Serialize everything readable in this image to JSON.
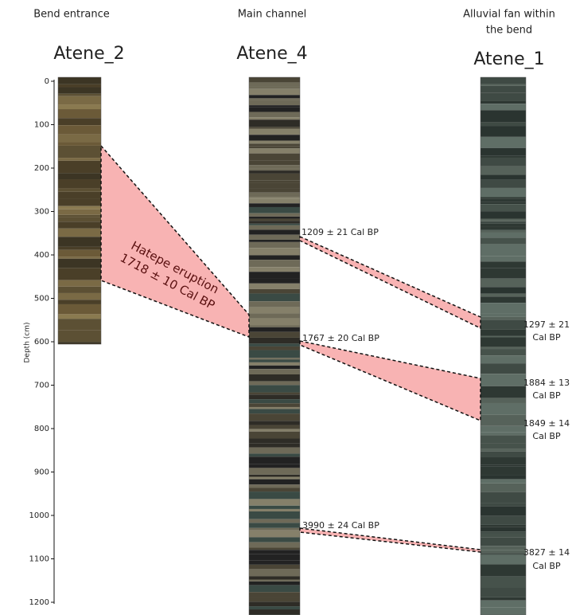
{
  "columns": [
    {
      "region": [
        "Bend entrance"
      ],
      "name": "Atene_2"
    },
    {
      "region": [
        "Main channel"
      ],
      "name": "Atene_4"
    },
    {
      "region": [
        "Alluvial fan within",
        "the bend"
      ],
      "name": "Atene_1"
    }
  ],
  "depth_axis": {
    "label": "Depth (cm)",
    "ticks": [
      0,
      100,
      200,
      300,
      400,
      500,
      600,
      700,
      800,
      900,
      1000,
      1100,
      1200
    ]
  },
  "eruption": {
    "name": "Hatepe eruption",
    "date": "1718 ± 10 Cal BP"
  },
  "dates_atene_4": [
    "1209 ± 21 Cal BP",
    "1767 ± 20 Cal BP",
    "3990 ± 24 Cal BP"
  ],
  "dates_atene_1": [
    [
      "1297 ± 21",
      "Cal BP"
    ],
    [
      "1884 ± 13",
      "Cal BP"
    ],
    [
      "1849 ± 14",
      "Cal BP"
    ],
    [
      "3827 ± 14",
      "Cal BP"
    ]
  ]
}
